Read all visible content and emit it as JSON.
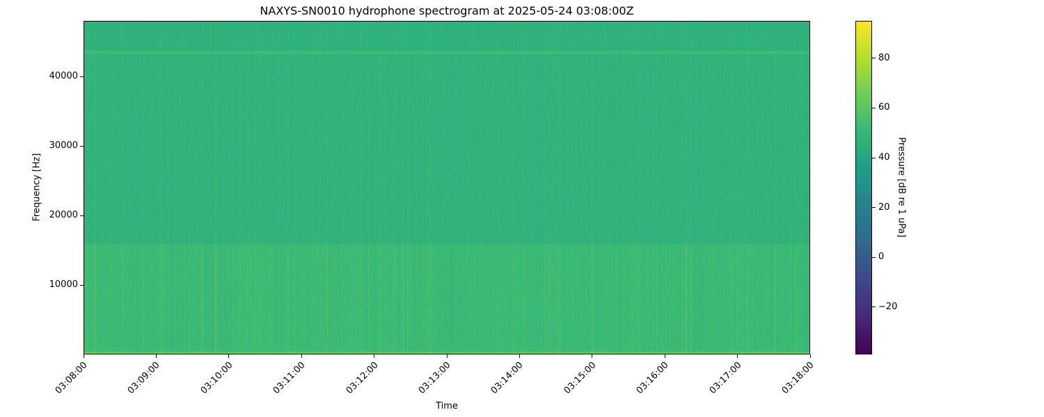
{
  "chart_data": {
    "type": "heatmap",
    "title": "NAXYS-SN0010 hydrophone spectrogram at 2025-05-24 03:08:00Z",
    "xlabel": "Time",
    "ylabel": "Frequency [Hz]",
    "colorbar_label": "Pressure [dB re 1 uPa]",
    "colormap": "viridis",
    "x_range": [
      "03:08:00",
      "03:18:00"
    ],
    "x_ticks": [
      "03:08:00",
      "03:09:00",
      "03:10:00",
      "03:11:00",
      "03:12:00",
      "03:13:00",
      "03:14:00",
      "03:15:00",
      "03:16:00",
      "03:17:00",
      "03:18:00"
    ],
    "y_range": [
      0,
      48000
    ],
    "y_ticks": [
      10000,
      20000,
      30000,
      40000
    ],
    "color_range": [
      -39,
      95
    ],
    "color_ticks": [
      -20,
      0,
      20,
      40,
      60,
      80
    ],
    "approx_levels_db": [
      {
        "freq_band_hz": [
          0,
          500
        ],
        "level": 62
      },
      {
        "freq_band_hz": [
          500,
          16000
        ],
        "level": 52
      },
      {
        "freq_band_hz": [
          16000,
          43000
        ],
        "level": 48
      },
      {
        "freq_band_hz": [
          43300,
          43800
        ],
        "level": 53
      },
      {
        "freq_band_hz": [
          43800,
          48000
        ],
        "level": 47
      }
    ],
    "grid": false
  }
}
